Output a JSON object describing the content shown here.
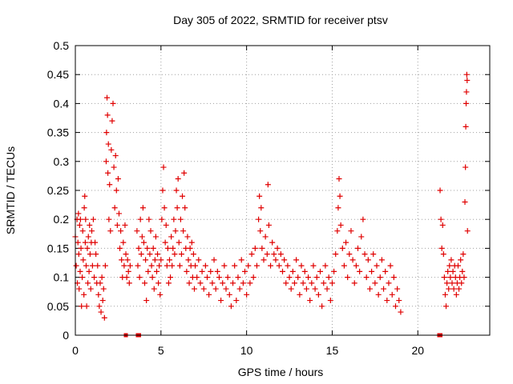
{
  "chart_data": {
    "type": "scatter",
    "title": "Day 305 of 2022, SRMTID for receiver ptsv",
    "xlabel": "GPS time / hours",
    "ylabel": "SRMTID / TECUs",
    "xlim": [
      0,
      24.2
    ],
    "ylim": [
      0,
      0.5
    ],
    "xticks": [
      0,
      5,
      10,
      15,
      20
    ],
    "yticks": [
      0,
      0.05,
      0.1,
      0.15,
      0.2,
      0.25,
      0.3,
      0.35,
      0.4,
      0.45,
      0.5
    ],
    "xtick_labels": [
      "0",
      "5",
      "10",
      "15",
      "20"
    ],
    "ytick_labels": [
      "0",
      "0.05",
      "0.1",
      "0.15",
      "0.2",
      "0.25",
      "0.3",
      "0.35",
      "0.4",
      "0.45",
      "0.5"
    ],
    "grid": true,
    "marker": "plus",
    "color": "#e00000",
    "zero_markers_x": [
      2.95,
      3.65,
      3.72,
      21.25,
      21.32
    ],
    "points": [
      [
        0.0,
        0.17
      ],
      [
        0.05,
        0.12
      ],
      [
        0.1,
        0.2
      ],
      [
        0.12,
        0.09
      ],
      [
        0.15,
        0.16
      ],
      [
        0.18,
        0.21
      ],
      [
        0.2,
        0.14
      ],
      [
        0.22,
        0.08
      ],
      [
        0.25,
        0.19
      ],
      [
        0.28,
        0.11
      ],
      [
        0.3,
        0.2
      ],
      [
        0.33,
        0.15
      ],
      [
        0.36,
        0.05
      ],
      [
        0.4,
        0.1
      ],
      [
        0.43,
        0.18
      ],
      [
        0.46,
        0.13
      ],
      [
        0.5,
        0.07
      ],
      [
        0.52,
        0.22
      ],
      [
        0.55,
        0.24
      ],
      [
        0.58,
        0.16
      ],
      [
        0.6,
        0.2
      ],
      [
        0.63,
        0.12
      ],
      [
        0.66,
        0.05
      ],
      [
        0.7,
        0.15
      ],
      [
        0.73,
        0.09
      ],
      [
        0.76,
        0.17
      ],
      [
        0.8,
        0.11
      ],
      [
        0.83,
        0.19
      ],
      [
        0.86,
        0.14
      ],
      [
        0.9,
        0.08
      ],
      [
        0.93,
        0.16
      ],
      [
        0.96,
        0.18
      ],
      [
        1.0,
        0.12
      ],
      [
        1.05,
        0.2
      ],
      [
        1.1,
        0.1
      ],
      [
        1.15,
        0.16
      ],
      [
        1.2,
        0.14
      ],
      [
        1.25,
        0.09
      ],
      [
        1.3,
        0.12
      ],
      [
        1.35,
        0.07
      ],
      [
        1.4,
        0.05
      ],
      [
        1.45,
        0.09
      ],
      [
        1.5,
        0.04
      ],
      [
        1.55,
        0.1
      ],
      [
        1.6,
        0.06
      ],
      [
        1.65,
        0.08
      ],
      [
        1.7,
        0.03
      ],
      [
        1.75,
        0.12
      ],
      [
        1.8,
        0.3
      ],
      [
        1.82,
        0.35
      ],
      [
        1.85,
        0.41
      ],
      [
        1.88,
        0.38
      ],
      [
        1.9,
        0.28
      ],
      [
        1.93,
        0.33
      ],
      [
        1.96,
        0.2
      ],
      [
        2.0,
        0.26
      ],
      [
        2.05,
        0.18
      ],
      [
        2.1,
        0.32
      ],
      [
        2.15,
        0.37
      ],
      [
        2.2,
        0.4
      ],
      [
        2.25,
        0.29
      ],
      [
        2.3,
        0.22
      ],
      [
        2.35,
        0.31
      ],
      [
        2.4,
        0.25
      ],
      [
        2.45,
        0.19
      ],
      [
        2.5,
        0.27
      ],
      [
        2.55,
        0.21
      ],
      [
        2.6,
        0.15
      ],
      [
        2.65,
        0.18
      ],
      [
        2.7,
        0.13
      ],
      [
        2.75,
        0.1
      ],
      [
        2.8,
        0.16
      ],
      [
        2.85,
        0.12
      ],
      [
        2.9,
        0.19
      ],
      [
        2.95,
        0.14
      ],
      [
        3.0,
        0.1
      ],
      [
        3.05,
        0.13
      ],
      [
        3.1,
        0.11
      ],
      [
        3.15,
        0.09
      ],
      [
        3.2,
        0.12
      ],
      [
        3.6,
        0.18
      ],
      [
        3.65,
        0.12
      ],
      [
        3.7,
        0.15
      ],
      [
        3.75,
        0.1
      ],
      [
        3.8,
        0.2
      ],
      [
        3.85,
        0.14
      ],
      [
        3.9,
        0.17
      ],
      [
        3.95,
        0.22
      ],
      [
        4.0,
        0.16
      ],
      [
        4.05,
        0.09
      ],
      [
        4.1,
        0.13
      ],
      [
        4.15,
        0.06
      ],
      [
        4.2,
        0.15
      ],
      [
        4.25,
        0.11
      ],
      [
        4.3,
        0.2
      ],
      [
        4.35,
        0.14
      ],
      [
        4.4,
        0.18
      ],
      [
        4.45,
        0.12
      ],
      [
        4.5,
        0.1
      ],
      [
        4.55,
        0.15
      ],
      [
        4.6,
        0.08
      ],
      [
        4.65,
        0.13
      ],
      [
        4.7,
        0.17
      ],
      [
        4.75,
        0.11
      ],
      [
        4.8,
        0.14
      ],
      [
        4.85,
        0.09
      ],
      [
        4.9,
        0.12
      ],
      [
        4.95,
        0.07
      ],
      [
        5.0,
        0.13
      ],
      [
        5.05,
        0.2
      ],
      [
        5.1,
        0.25
      ],
      [
        5.15,
        0.29
      ],
      [
        5.2,
        0.22
      ],
      [
        5.25,
        0.16
      ],
      [
        5.3,
        0.19
      ],
      [
        5.35,
        0.12
      ],
      [
        5.4,
        0.15
      ],
      [
        5.45,
        0.09
      ],
      [
        5.5,
        0.13
      ],
      [
        5.55,
        0.1
      ],
      [
        5.6,
        0.17
      ],
      [
        5.65,
        0.12
      ],
      [
        5.7,
        0.15
      ],
      [
        5.75,
        0.2
      ],
      [
        5.8,
        0.14
      ],
      [
        5.85,
        0.18
      ],
      [
        5.9,
        0.25
      ],
      [
        5.95,
        0.22
      ],
      [
        6.0,
        0.27
      ],
      [
        6.05,
        0.16
      ],
      [
        6.1,
        0.12
      ],
      [
        6.15,
        0.2
      ],
      [
        6.2,
        0.14
      ],
      [
        6.25,
        0.24
      ],
      [
        6.3,
        0.18
      ],
      [
        6.35,
        0.28
      ],
      [
        6.4,
        0.22
      ],
      [
        6.45,
        0.15
      ],
      [
        6.5,
        0.11
      ],
      [
        6.55,
        0.17
      ],
      [
        6.6,
        0.13
      ],
      [
        6.65,
        0.09
      ],
      [
        6.7,
        0.15
      ],
      [
        6.75,
        0.12
      ],
      [
        6.8,
        0.16
      ],
      [
        6.85,
        0.1
      ],
      [
        6.9,
        0.14
      ],
      [
        6.95,
        0.08
      ],
      [
        7.0,
        0.12
      ],
      [
        7.1,
        0.1
      ],
      [
        7.2,
        0.13
      ],
      [
        7.3,
        0.09
      ],
      [
        7.4,
        0.11
      ],
      [
        7.5,
        0.08
      ],
      [
        7.6,
        0.12
      ],
      [
        7.7,
        0.1
      ],
      [
        7.8,
        0.07
      ],
      [
        7.9,
        0.11
      ],
      [
        8.0,
        0.09
      ],
      [
        8.1,
        0.13
      ],
      [
        8.2,
        0.08
      ],
      [
        8.3,
        0.11
      ],
      [
        8.4,
        0.1
      ],
      [
        8.5,
        0.06
      ],
      [
        8.6,
        0.09
      ],
      [
        8.7,
        0.12
      ],
      [
        8.8,
        0.08
      ],
      [
        8.9,
        0.1
      ],
      [
        9.0,
        0.07
      ],
      [
        9.1,
        0.05
      ],
      [
        9.2,
        0.09
      ],
      [
        9.3,
        0.12
      ],
      [
        9.4,
        0.06
      ],
      [
        9.5,
        0.1
      ],
      [
        9.6,
        0.08
      ],
      [
        9.7,
        0.13
      ],
      [
        9.8,
        0.09
      ],
      [
        9.9,
        0.11
      ],
      [
        10.0,
        0.07
      ],
      [
        10.1,
        0.12
      ],
      [
        10.2,
        0.09
      ],
      [
        10.3,
        0.14
      ],
      [
        10.4,
        0.1
      ],
      [
        10.5,
        0.15
      ],
      [
        10.6,
        0.12
      ],
      [
        10.7,
        0.2
      ],
      [
        10.75,
        0.24
      ],
      [
        10.8,
        0.18
      ],
      [
        10.85,
        0.22
      ],
      [
        10.9,
        0.15
      ],
      [
        11.0,
        0.13
      ],
      [
        11.1,
        0.17
      ],
      [
        11.2,
        0.14
      ],
      [
        11.25,
        0.26
      ],
      [
        11.3,
        0.19
      ],
      [
        11.4,
        0.12
      ],
      [
        11.5,
        0.16
      ],
      [
        11.6,
        0.14
      ],
      [
        11.7,
        0.13
      ],
      [
        11.8,
        0.15
      ],
      [
        11.9,
        0.12
      ],
      [
        12.0,
        0.14
      ],
      [
        12.1,
        0.11
      ],
      [
        12.2,
        0.13
      ],
      [
        12.3,
        0.09
      ],
      [
        12.4,
        0.12
      ],
      [
        12.5,
        0.1
      ],
      [
        12.6,
        0.08
      ],
      [
        12.7,
        0.11
      ],
      [
        12.8,
        0.09
      ],
      [
        12.9,
        0.13
      ],
      [
        13.0,
        0.1
      ],
      [
        13.1,
        0.07
      ],
      [
        13.2,
        0.12
      ],
      [
        13.3,
        0.09
      ],
      [
        13.4,
        0.11
      ],
      [
        13.5,
        0.08
      ],
      [
        13.6,
        0.1
      ],
      [
        13.7,
        0.06
      ],
      [
        13.8,
        0.09
      ],
      [
        13.9,
        0.12
      ],
      [
        14.0,
        0.08
      ],
      [
        14.1,
        0.1
      ],
      [
        14.2,
        0.07
      ],
      [
        14.3,
        0.11
      ],
      [
        14.4,
        0.05
      ],
      [
        14.5,
        0.09
      ],
      [
        14.6,
        0.12
      ],
      [
        14.7,
        0.08
      ],
      [
        14.8,
        0.1
      ],
      [
        14.9,
        0.06
      ],
      [
        15.0,
        0.09
      ],
      [
        15.1,
        0.11
      ],
      [
        15.2,
        0.14
      ],
      [
        15.3,
        0.18
      ],
      [
        15.35,
        0.22
      ],
      [
        15.4,
        0.27
      ],
      [
        15.45,
        0.24
      ],
      [
        15.5,
        0.19
      ],
      [
        15.6,
        0.15
      ],
      [
        15.7,
        0.12
      ],
      [
        15.8,
        0.16
      ],
      [
        15.9,
        0.1
      ],
      [
        16.0,
        0.14
      ],
      [
        16.1,
        0.18
      ],
      [
        16.2,
        0.13
      ],
      [
        16.3,
        0.09
      ],
      [
        16.4,
        0.12
      ],
      [
        16.5,
        0.15
      ],
      [
        16.6,
        0.11
      ],
      [
        16.7,
        0.17
      ],
      [
        16.8,
        0.2
      ],
      [
        16.9,
        0.14
      ],
      [
        17.0,
        0.1
      ],
      [
        17.1,
        0.13
      ],
      [
        17.2,
        0.08
      ],
      [
        17.3,
        0.11
      ],
      [
        17.4,
        0.14
      ],
      [
        17.5,
        0.09
      ],
      [
        17.6,
        0.12
      ],
      [
        17.7,
        0.07
      ],
      [
        17.8,
        0.1
      ],
      [
        17.9,
        0.13
      ],
      [
        18.0,
        0.08
      ],
      [
        18.1,
        0.11
      ],
      [
        18.2,
        0.06
      ],
      [
        18.3,
        0.09
      ],
      [
        18.4,
        0.12
      ],
      [
        18.5,
        0.07
      ],
      [
        18.6,
        0.1
      ],
      [
        18.7,
        0.05
      ],
      [
        18.8,
        0.08
      ],
      [
        18.9,
        0.06
      ],
      [
        19.0,
        0.04
      ],
      [
        21.3,
        0.25
      ],
      [
        21.35,
        0.2
      ],
      [
        21.4,
        0.15
      ],
      [
        21.45,
        0.19
      ],
      [
        21.5,
        0.14
      ],
      [
        21.55,
        0.1
      ],
      [
        21.6,
        0.07
      ],
      [
        21.65,
        0.05
      ],
      [
        21.7,
        0.09
      ],
      [
        21.75,
        0.11
      ],
      [
        21.8,
        0.08
      ],
      [
        21.85,
        0.12
      ],
      [
        21.9,
        0.1
      ],
      [
        21.95,
        0.13
      ],
      [
        22.0,
        0.09
      ],
      [
        22.05,
        0.11
      ],
      [
        22.1,
        0.08
      ],
      [
        22.15,
        0.12
      ],
      [
        22.2,
        0.1
      ],
      [
        22.25,
        0.07
      ],
      [
        22.3,
        0.09
      ],
      [
        22.35,
        0.12
      ],
      [
        22.4,
        0.08
      ],
      [
        22.45,
        0.1
      ],
      [
        22.5,
        0.13
      ],
      [
        22.55,
        0.09
      ],
      [
        22.6,
        0.11
      ],
      [
        22.65,
        0.14
      ],
      [
        22.7,
        0.1
      ],
      [
        22.75,
        0.23
      ],
      [
        22.78,
        0.29
      ],
      [
        22.8,
        0.36
      ],
      [
        22.82,
        0.4
      ],
      [
        22.84,
        0.42
      ],
      [
        22.86,
        0.45
      ],
      [
        22.88,
        0.44
      ],
      [
        22.9,
        0.18
      ]
    ]
  }
}
